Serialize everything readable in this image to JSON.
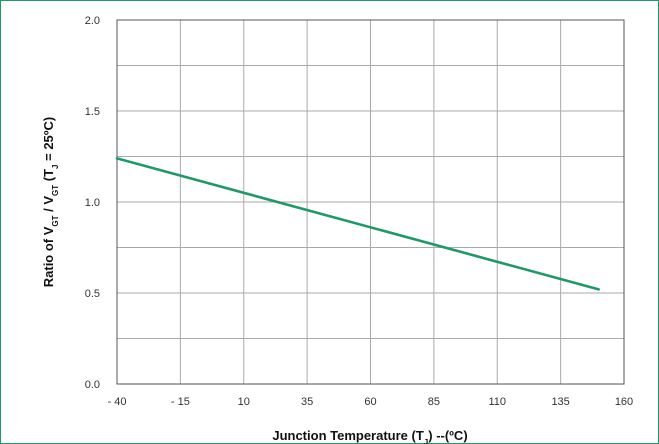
{
  "chart_data": {
    "type": "line",
    "title": "",
    "xlabel": "Junction Temperature (T",
    "xlabel_sub": "J",
    "xlabel_tail": ") --(ºC)",
    "ylabel": {
      "p1": "Ratio of V",
      "s1": "GT",
      "p2": " / V",
      "s2": "GT",
      "p3": " (T",
      "s3": "J",
      "p4": " = 25ºC)"
    },
    "xlim": [
      -40,
      160
    ],
    "ylim": [
      0,
      2.0
    ],
    "x_ticks": [
      -40,
      -15,
      10,
      35,
      60,
      85,
      110,
      135,
      160
    ],
    "x_tick_labels": [
      "- 40",
      "- 15",
      "10",
      "35",
      "60",
      "85",
      "110",
      "135",
      "160"
    ],
    "y_ticks": [
      0,
      0.25,
      0.5,
      0.75,
      1.0,
      1.25,
      1.5,
      1.75,
      2.0
    ],
    "y_tick_labels": [
      "0.0",
      "",
      "0.5",
      "",
      "1.0",
      "",
      "1.5",
      "",
      "2.0"
    ],
    "grid": true,
    "colors": {
      "line": "#1f9a67",
      "grid": "#aaaaaa",
      "frame": "#1f9a67"
    },
    "series": [
      {
        "x": [
          -40,
          150
        ],
        "y": [
          1.24,
          0.52
        ]
      }
    ]
  }
}
